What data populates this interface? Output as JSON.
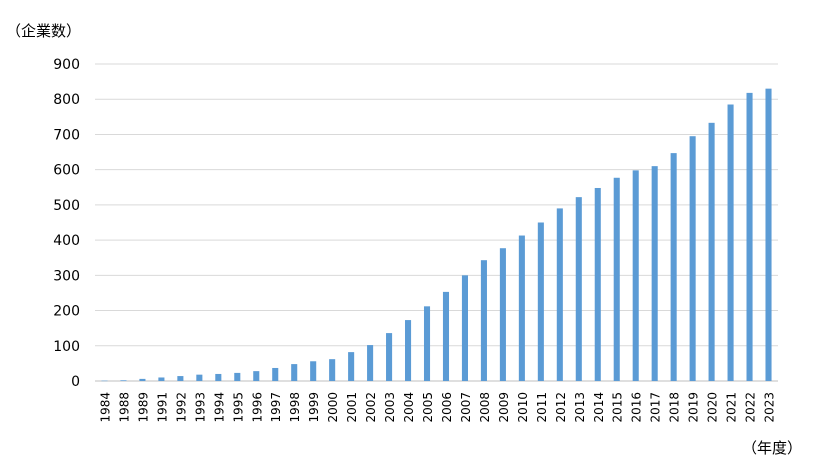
{
  "chart_data": {
    "type": "bar",
    "ylabel": "（企業数）",
    "xlabel": "（年度）",
    "ylim": [
      0,
      900
    ],
    "yticks": [
      0,
      100,
      200,
      300,
      400,
      500,
      600,
      700,
      800,
      900
    ],
    "grid": true,
    "legend": "none",
    "bar_color": "#5b9bd5",
    "categories": [
      "1984",
      "1988",
      "1989",
      "1991",
      "1992",
      "1993",
      "1994",
      "1995",
      "1996",
      "1997",
      "1998",
      "1999",
      "2000",
      "2001",
      "2002",
      "2003",
      "2004",
      "2005",
      "2006",
      "2007",
      "2008",
      "2009",
      "2010",
      "2011",
      "2012",
      "2013",
      "2014",
      "2015",
      "2016",
      "2017",
      "2018",
      "2019",
      "2020",
      "2021",
      "2022",
      "2023"
    ],
    "values": [
      1,
      2,
      6,
      10,
      14,
      18,
      20,
      23,
      28,
      37,
      48,
      56,
      62,
      82,
      102,
      136,
      173,
      212,
      253,
      300,
      343,
      377,
      413,
      450,
      490,
      522,
      548,
      577,
      598,
      610,
      647,
      695,
      733,
      785,
      818,
      830
    ]
  }
}
